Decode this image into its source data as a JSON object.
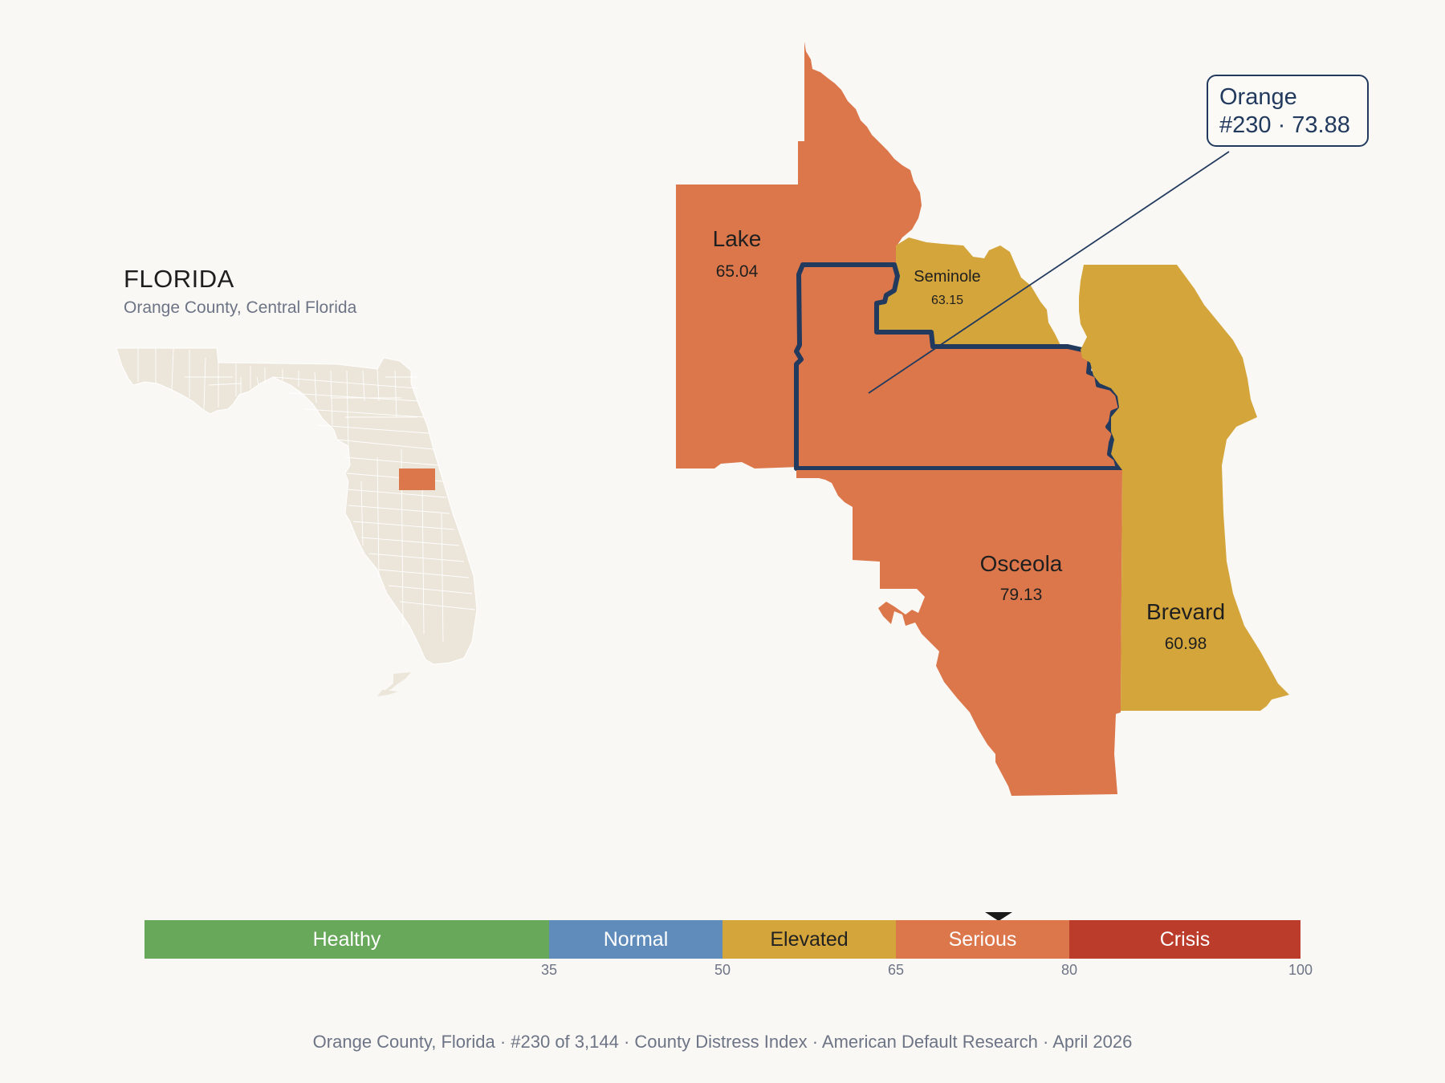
{
  "state": {
    "title": "FLORIDA",
    "subtitle": "Orange County, Central Florida"
  },
  "counties": {
    "lake": {
      "name": "Lake",
      "value": "65.04"
    },
    "seminole": {
      "name": "Seminole",
      "value": "63.15"
    },
    "osceola": {
      "name": "Osceola",
      "value": "79.13"
    },
    "brevard": {
      "name": "Brevard",
      "value": "60.98"
    }
  },
  "callout": {
    "name": "Orange",
    "detail": "#230 · 73.88"
  },
  "scale": {
    "bands": [
      {
        "label": "Healthy",
        "from": 0,
        "to": 35,
        "color": "#68a85a"
      },
      {
        "label": "Normal",
        "from": 35,
        "to": 50,
        "color": "#5f8cbb"
      },
      {
        "label": "Elevated",
        "from": 50,
        "to": 65,
        "color": "#d4a53b"
      },
      {
        "label": "Serious",
        "from": 65,
        "to": 80,
        "color": "#dc774b"
      },
      {
        "label": "Crisis",
        "from": 80,
        "to": 100,
        "color": "#bc3c2c"
      }
    ],
    "ticks": [
      "35",
      "50",
      "65",
      "80",
      "100"
    ],
    "marker_value": 73.88
  },
  "colors": {
    "serious": "#dc774b",
    "elevated": "#d4a53b",
    "outline": "#223a5e",
    "state_fill": "#ebe5da"
  },
  "footer": "Orange County, Florida  ·  #230 of 3,144  ·  County Distress Index  ·  American Default Research  ·  April 2026"
}
